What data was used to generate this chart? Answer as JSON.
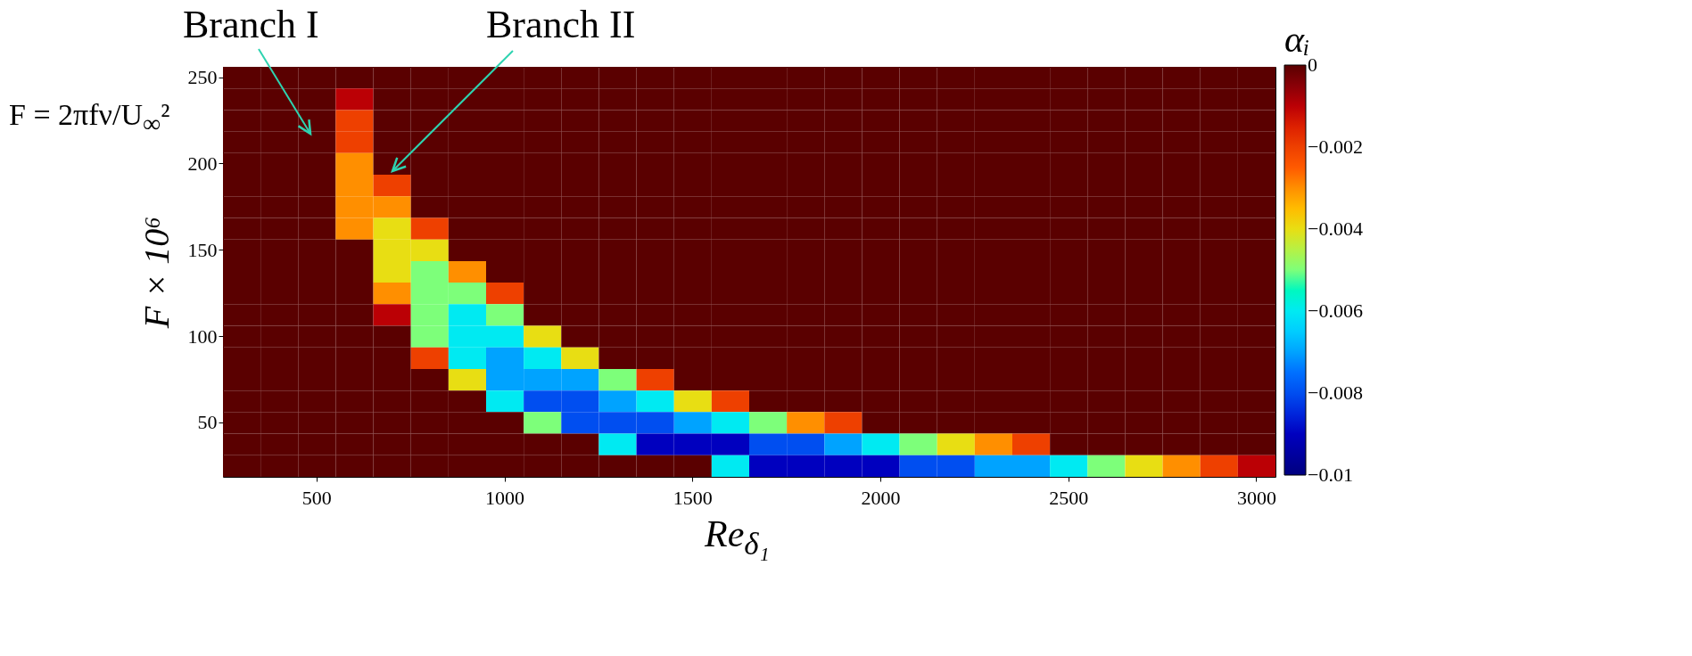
{
  "chart_data": {
    "type": "heatmap",
    "xlabel": "Re$_{δ₁}$",
    "ylabel": "F × 10⁶",
    "clabel": "αᵢ",
    "annotations": [
      "Branch I",
      "Branch II",
      "F = 2πfν/U$_{∞}$²"
    ],
    "categories": [
      null,
      null,
      "500",
      null,
      null,
      null,
      null,
      "1000",
      null,
      null,
      null,
      null,
      "1500",
      null,
      null,
      null,
      null,
      "2000",
      null,
      null,
      null,
      null,
      "2500",
      null,
      null,
      null,
      null,
      "3000"
    ],
    "y_categories": [
      "250",
      null,
      null,
      null,
      "200",
      null,
      null,
      null,
      "150",
      null,
      null,
      null,
      "100",
      null,
      null,
      null,
      "50",
      null,
      null
    ],
    "clim": [
      -0.01,
      0
    ],
    "cticks": [
      0,
      {
        "value": -0.002,
        "label": "−0.002"
      },
      {
        "value": -0.004,
        "label": "−0.004"
      },
      {
        "value": -0.006,
        "label": "−0.006"
      },
      {
        "value": -0.008,
        "label": "−0.008"
      },
      {
        "value": -0.01,
        "label": "−0.01"
      }
    ],
    "cells": [
      [
        0,
        0,
        0,
        0,
        0,
        0,
        0,
        0,
        0,
        0,
        0,
        0,
        0,
        0,
        0,
        0,
        0,
        0,
        0,
        0,
        0,
        0,
        0,
        0,
        0,
        0,
        0,
        0
      ],
      [
        0,
        0,
        0,
        -0.001,
        0,
        0,
        0,
        0,
        0,
        0,
        0,
        0,
        0,
        0,
        0,
        0,
        0,
        0,
        0,
        0,
        0,
        0,
        0,
        0,
        0,
        0,
        0,
        0
      ],
      [
        0,
        0,
        0,
        -0.002,
        0,
        0,
        0,
        0,
        0,
        0,
        0,
        0,
        0,
        0,
        0,
        0,
        0,
        0,
        0,
        0,
        0,
        0,
        0,
        0,
        0,
        0,
        0,
        0
      ],
      [
        0,
        0,
        0,
        -0.002,
        0,
        0,
        0,
        0,
        0,
        0,
        0,
        0,
        0,
        0,
        0,
        0,
        0,
        0,
        0,
        0,
        0,
        0,
        0,
        0,
        0,
        0,
        0,
        0
      ],
      [
        0,
        0,
        0,
        -0.003,
        0,
        0,
        0,
        0,
        0,
        0,
        0,
        0,
        0,
        0,
        0,
        0,
        0,
        0,
        0,
        0,
        0,
        0,
        0,
        0,
        0,
        0,
        0,
        0
      ],
      [
        0,
        0,
        0,
        -0.003,
        -0.002,
        0,
        0,
        0,
        0,
        0,
        0,
        0,
        0,
        0,
        0,
        0,
        0,
        0,
        0,
        0,
        0,
        0,
        0,
        0,
        0,
        0,
        0,
        0
      ],
      [
        0,
        0,
        0,
        -0.003,
        -0.003,
        0,
        0,
        0,
        0,
        0,
        0,
        0,
        0,
        0,
        0,
        0,
        0,
        0,
        0,
        0,
        0,
        0,
        0,
        0,
        0,
        0,
        0,
        0
      ],
      [
        0,
        0,
        0,
        -0.003,
        -0.004,
        -0.002,
        0,
        0,
        0,
        0,
        0,
        0,
        0,
        0,
        0,
        0,
        0,
        0,
        0,
        0,
        0,
        0,
        0,
        0,
        0,
        0,
        0,
        0
      ],
      [
        0,
        0,
        0,
        0,
        -0.004,
        -0.004,
        0,
        0,
        0,
        0,
        0,
        0,
        0,
        0,
        0,
        0,
        0,
        0,
        0,
        0,
        0,
        0,
        0,
        0,
        0,
        0,
        0,
        0
      ],
      [
        0,
        0,
        0,
        0,
        -0.004,
        -0.005,
        -0.003,
        0,
        0,
        0,
        0,
        0,
        0,
        0,
        0,
        0,
        0,
        0,
        0,
        0,
        0,
        0,
        0,
        0,
        0,
        0,
        0,
        0
      ],
      [
        0,
        0,
        0,
        0,
        -0.003,
        -0.005,
        -0.005,
        -0.002,
        0,
        0,
        0,
        0,
        0,
        0,
        0,
        0,
        0,
        0,
        0,
        0,
        0,
        0,
        0,
        0,
        0,
        0,
        0,
        0
      ],
      [
        0,
        0,
        0,
        0,
        -0.001,
        -0.005,
        -0.006,
        -0.005,
        0,
        0,
        0,
        0,
        0,
        0,
        0,
        0,
        0,
        0,
        0,
        0,
        0,
        0,
        0,
        0,
        0,
        0,
        0,
        0
      ],
      [
        0,
        0,
        0,
        0,
        0,
        -0.005,
        -0.006,
        -0.006,
        -0.004,
        0,
        0,
        0,
        0,
        0,
        0,
        0,
        0,
        0,
        0,
        0,
        0,
        0,
        0,
        0,
        0,
        0,
        0,
        0
      ],
      [
        0,
        0,
        0,
        0,
        0,
        -0.002,
        -0.006,
        -0.007,
        -0.006,
        -0.004,
        0,
        0,
        0,
        0,
        0,
        0,
        0,
        0,
        0,
        0,
        0,
        0,
        0,
        0,
        0,
        0,
        0,
        0
      ],
      [
        0,
        0,
        0,
        0,
        0,
        0,
        -0.004,
        -0.007,
        -0.007,
        -0.007,
        -0.005,
        -0.002,
        0,
        0,
        0,
        0,
        0,
        0,
        0,
        0,
        0,
        0,
        0,
        0,
        0,
        0,
        0,
        0
      ],
      [
        0,
        0,
        0,
        0,
        0,
        0,
        0,
        -0.006,
        -0.008,
        -0.008,
        -0.007,
        -0.006,
        -0.004,
        -0.002,
        0,
        0,
        0,
        0,
        0,
        0,
        0,
        0,
        0,
        0,
        0,
        0,
        0,
        0
      ],
      [
        0,
        0,
        0,
        0,
        0,
        0,
        0,
        0,
        -0.005,
        -0.008,
        -0.008,
        -0.008,
        -0.007,
        -0.006,
        -0.005,
        -0.003,
        -0.002,
        0,
        0,
        0,
        0,
        0,
        0,
        0,
        0,
        0,
        0,
        0
      ],
      [
        0,
        0,
        0,
        0,
        0,
        0,
        0,
        0,
        0,
        0,
        -0.006,
        -0.009,
        -0.009,
        -0.009,
        -0.008,
        -0.008,
        -0.007,
        -0.006,
        -0.005,
        -0.004,
        -0.003,
        -0.002,
        0,
        0,
        0,
        0,
        0,
        0
      ],
      [
        0,
        0,
        0,
        0,
        0,
        0,
        0,
        0,
        0,
        0,
        0,
        0,
        0,
        -0.006,
        -0.009,
        -0.009,
        -0.009,
        -0.009,
        -0.008,
        -0.008,
        -0.007,
        -0.007,
        -0.006,
        -0.005,
        -0.004,
        -0.003,
        -0.002,
        -0.001
      ]
    ]
  }
}
